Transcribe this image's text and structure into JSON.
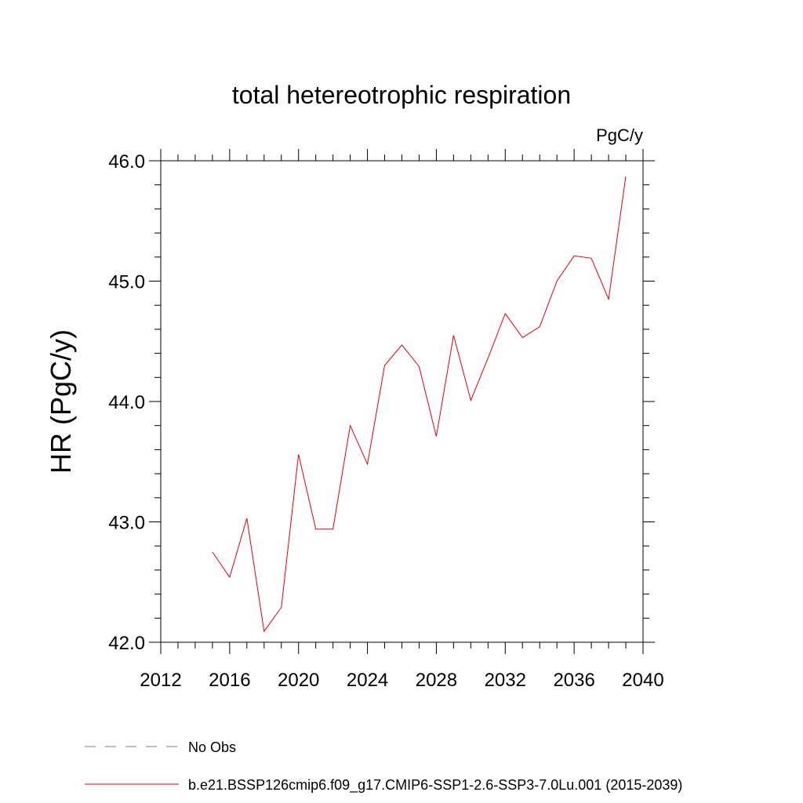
{
  "chart_data": {
    "type": "line",
    "title": "total hetereotrophic respiration",
    "units": "PgC/y",
    "ylabel": "HR  (PgC/y)",
    "xlabel": "",
    "xlim": [
      2012,
      2040
    ],
    "ylim": [
      42.0,
      46.0
    ],
    "x_ticks": [
      2012,
      2016,
      2020,
      2024,
      2028,
      2032,
      2036,
      2040
    ],
    "y_ticks": [
      "42.0",
      "43.0",
      "44.0",
      "45.0",
      "46.0"
    ],
    "grid": false,
    "legend_position": "bottom",
    "series": [
      {
        "name": "b.e21.BSSP126cmip6.f09_g17.CMIP6-SSP1-2.6-SSP3-7.0Lu.001 (2015-2039)",
        "color": "#e8000b",
        "style": "solid",
        "x": [
          2015,
          2016,
          2017,
          2018,
          2019,
          2020,
          2021,
          2022,
          2023,
          2024,
          2025,
          2026,
          2027,
          2028,
          2029,
          2030,
          2031,
          2032,
          2033,
          2034,
          2035,
          2036,
          2037,
          2038,
          2039
        ],
        "y": [
          42.75,
          42.54,
          43.03,
          42.09,
          42.29,
          43.56,
          42.94,
          42.94,
          43.8,
          43.48,
          44.3,
          44.47,
          44.29,
          43.71,
          44.55,
          44.01,
          44.36,
          44.73,
          44.53,
          44.62,
          45.0,
          45.21,
          45.19,
          44.85,
          45.87
        ]
      },
      {
        "name": "No Obs",
        "color": "#7f6fb0",
        "style": "dashed",
        "x": [],
        "y": []
      }
    ]
  }
}
